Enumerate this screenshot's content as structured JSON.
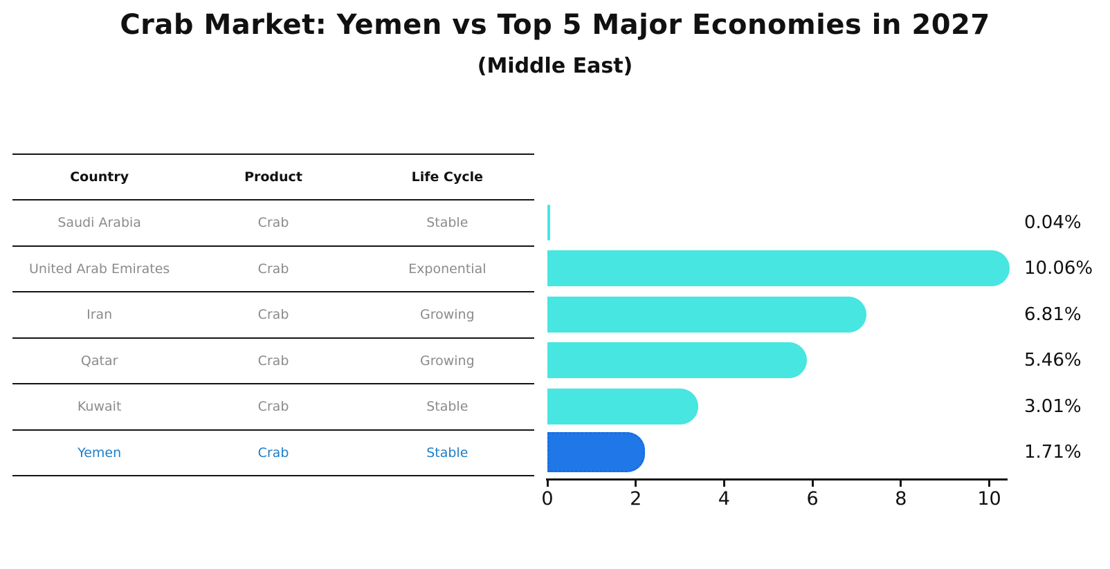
{
  "header": {
    "title": "Crab Market: Yemen vs Top 5 Major Economies in 2027",
    "subtitle": "(Middle East)"
  },
  "table": {
    "columns": [
      "Country",
      "Product",
      "Life Cycle"
    ]
  },
  "chart_data": {
    "type": "bar",
    "orientation": "horizontal",
    "title": "Crab Market: Yemen vs Top 5 Major Economies in 2027",
    "subtitle": "(Middle East)",
    "categories": [
      "Saudi Arabia",
      "United Arab Emirates",
      "Iran",
      "Qatar",
      "Kuwait",
      "Yemen"
    ],
    "rows": [
      {
        "country": "Saudi Arabia",
        "product": "Crab",
        "life_cycle": "Stable",
        "value": 0.04,
        "value_label": "0.04%",
        "highlight": false
      },
      {
        "country": "United Arab Emirates",
        "product": "Crab",
        "life_cycle": "Exponential",
        "value": 10.06,
        "value_label": "10.06%",
        "highlight": false
      },
      {
        "country": "Iran",
        "product": "Crab",
        "life_cycle": "Growing",
        "value": 6.81,
        "value_label": "6.81%",
        "highlight": false
      },
      {
        "country": "Qatar",
        "product": "Crab",
        "life_cycle": "Growing",
        "value": 5.46,
        "value_label": "5.46%",
        "highlight": false
      },
      {
        "country": "Kuwait",
        "product": "Crab",
        "life_cycle": "Stable",
        "value": 3.01,
        "value_label": "3.01%",
        "highlight": false
      },
      {
        "country": "Yemen",
        "product": "Crab",
        "life_cycle": "Stable",
        "value": 1.71,
        "value_label": "1.71%",
        "highlight": true
      }
    ],
    "x_ticks": [
      0,
      2,
      4,
      6,
      8,
      10
    ],
    "xlim": [
      0,
      10.4
    ],
    "grid": false,
    "legend": "none",
    "bar_color": "#47e6e0",
    "highlight_bar_color": "#2077e8",
    "highlight_text_color": "#1f7ec8",
    "axis_color": "#141414",
    "row_text_color": "#8b8b8b",
    "value_label_color": "#111111"
  }
}
